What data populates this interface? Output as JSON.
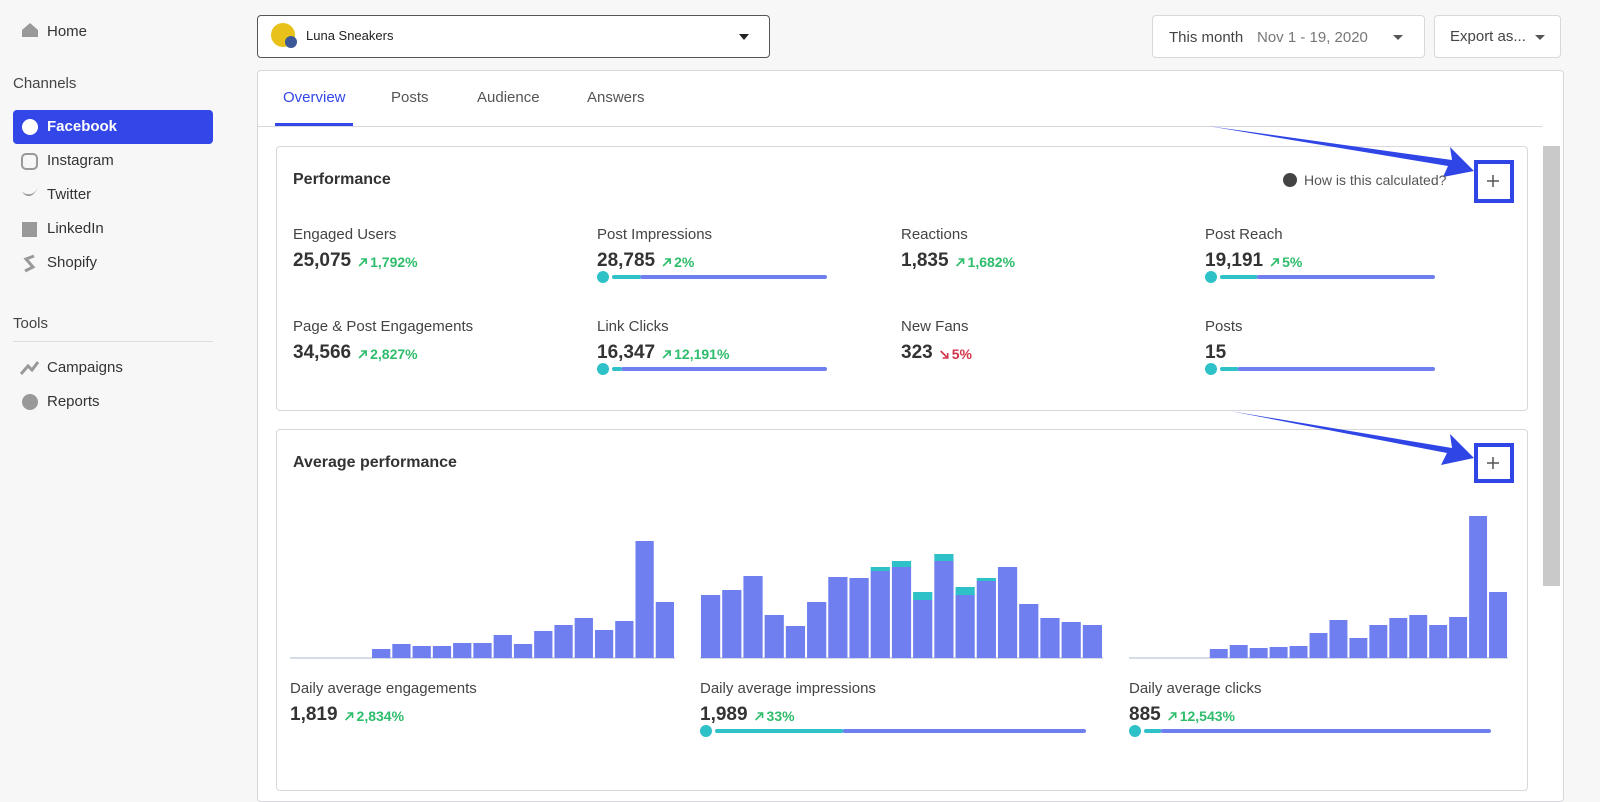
{
  "sidebar": {
    "home": "Home",
    "channels_heading": "Channels",
    "channels": [
      "Facebook",
      "Instagram",
      "Twitter",
      "LinkedIn",
      "Shopify"
    ],
    "tools_heading": "Tools",
    "tools": [
      "Campaigns",
      "Reports"
    ]
  },
  "header": {
    "account": "Luna Sneakers",
    "date_label": "This month",
    "date_range": "Nov 1 - 19, 2020",
    "export": "Export as..."
  },
  "tabs": [
    "Overview",
    "Posts",
    "Audience",
    "Answers"
  ],
  "performance": {
    "title": "Performance",
    "help": "How is this calculated?",
    "metrics": [
      {
        "label": "Engaged Users",
        "value": "25,075",
        "change": "1,792%",
        "trend": "up"
      },
      {
        "label": "Post Impressions",
        "value": "28,785",
        "change": "2%",
        "trend": "up",
        "split": [
          12,
          88
        ]
      },
      {
        "label": "Reactions",
        "value": "1,835",
        "change": "1,682%",
        "trend": "up"
      },
      {
        "label": "Post Reach",
        "value": "19,191",
        "change": "5%",
        "trend": "up",
        "split": [
          16,
          84
        ]
      },
      {
        "label": "Page & Post Engagements",
        "value": "34,566",
        "change": "2,827%",
        "trend": "up"
      },
      {
        "label": "Link Clicks",
        "value": "16,347",
        "change": "12,191%",
        "trend": "up",
        "split": [
          3,
          97
        ]
      },
      {
        "label": "New Fans",
        "value": "323",
        "change": "5%",
        "trend": "down"
      },
      {
        "label": "Posts",
        "value": "15",
        "split": [
          7,
          93
        ]
      }
    ]
  },
  "average": {
    "title": "Average performance",
    "panels": [
      {
        "label": "Daily average engagements",
        "value": "1,819",
        "change": "2,834%",
        "trend": "up",
        "series": [
          {
            "color": "#6f7ff0",
            "values": [
              0,
              0,
              0,
              0,
              9,
              14,
              12,
              12,
              15,
              15,
              23,
              14,
              27,
              33,
              40,
              28,
              37,
              117,
              56
            ]
          }
        ]
      },
      {
        "label": "Daily average impressions",
        "value": "1,989",
        "change": "33%",
        "trend": "up",
        "split": [
          34,
          66
        ],
        "series": [
          {
            "color": "#6f7ff0",
            "values": [
              63,
              68,
              82,
              43,
              32,
              56,
              81,
              80,
              87,
              91,
              58,
              97,
              63,
              77,
              91,
              54,
              40,
              36,
              33
            ]
          },
          {
            "color": "#2fc1c8",
            "values": [
              0,
              0,
              0,
              0,
              0,
              0,
              0,
              0,
              4,
              6,
              8,
              7,
              8,
              3,
              0,
              0,
              0,
              0,
              0
            ]
          }
        ]
      },
      {
        "label": "Daily average clicks",
        "value": "885",
        "change": "12,543%",
        "trend": "up",
        "split": [
          4,
          96
        ],
        "series": [
          {
            "color": "#6f7ff0",
            "values": [
              0,
              0,
              0,
              0,
              9,
              13,
              10,
              11,
              12,
              25,
              38,
              20,
              33,
              40,
              43,
              33,
              41,
              142,
              66
            ]
          }
        ]
      }
    ]
  }
}
